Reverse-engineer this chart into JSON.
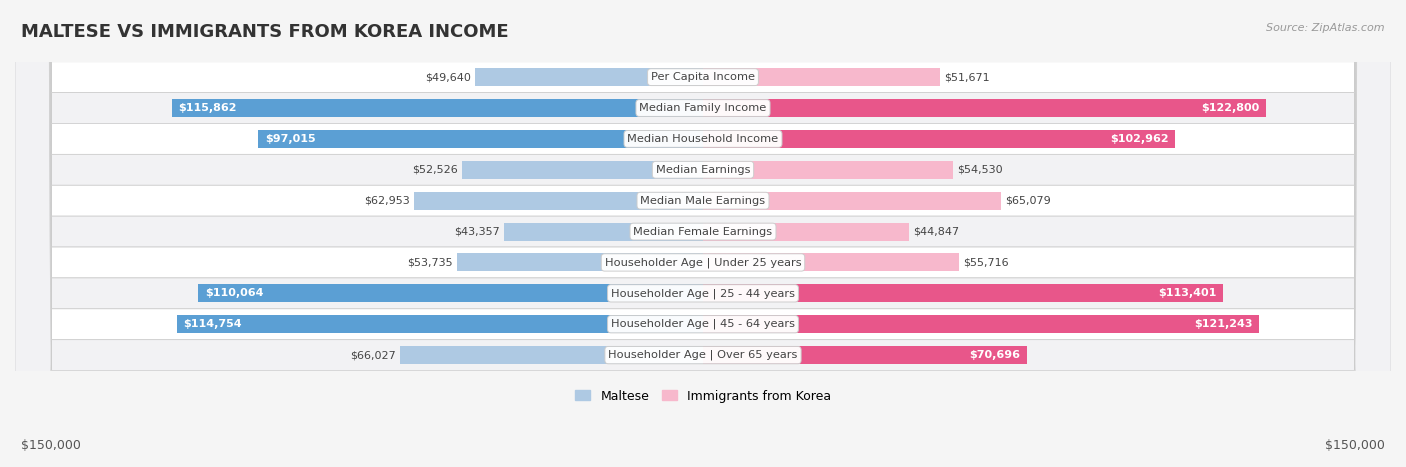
{
  "title": "MALTESE VS IMMIGRANTS FROM KOREA INCOME",
  "source": "Source: ZipAtlas.com",
  "categories": [
    "Per Capita Income",
    "Median Family Income",
    "Median Household Income",
    "Median Earnings",
    "Median Male Earnings",
    "Median Female Earnings",
    "Householder Age | Under 25 years",
    "Householder Age | 25 - 44 years",
    "Householder Age | 45 - 64 years",
    "Householder Age | Over 65 years"
  ],
  "maltese_values": [
    49640,
    115862,
    97015,
    52526,
    62953,
    43357,
    53735,
    110064,
    114754,
    66027
  ],
  "korea_values": [
    51671,
    122800,
    102962,
    54530,
    65079,
    44847,
    55716,
    113401,
    121243,
    70696
  ],
  "maltese_labels": [
    "$49,640",
    "$115,862",
    "$97,015",
    "$52,526",
    "$62,953",
    "$43,357",
    "$53,735",
    "$110,064",
    "$114,754",
    "$66,027"
  ],
  "korea_labels": [
    "$51,671",
    "$122,800",
    "$102,962",
    "$54,530",
    "$65,079",
    "$44,847",
    "$55,716",
    "$113,401",
    "$121,243",
    "$70,696"
  ],
  "max_value": 150000,
  "maltese_color_light": "#aec9e3",
  "maltese_color_dark": "#5b9fd4",
  "korea_color_light": "#f7b8cc",
  "korea_color_dark": "#e8568a",
  "large_threshold": 70000,
  "bar_height": 0.58,
  "background_color": "#f5f5f5",
  "row_colors": [
    "#ffffff",
    "#f2f2f4"
  ],
  "xlabel_left": "$150,000",
  "xlabel_right": "$150,000",
  "legend_maltese": "Maltese",
  "legend_korea": "Immigrants from Korea",
  "title_fontsize": 13,
  "cat_fontsize": 8.2,
  "value_fontsize": 8.0
}
